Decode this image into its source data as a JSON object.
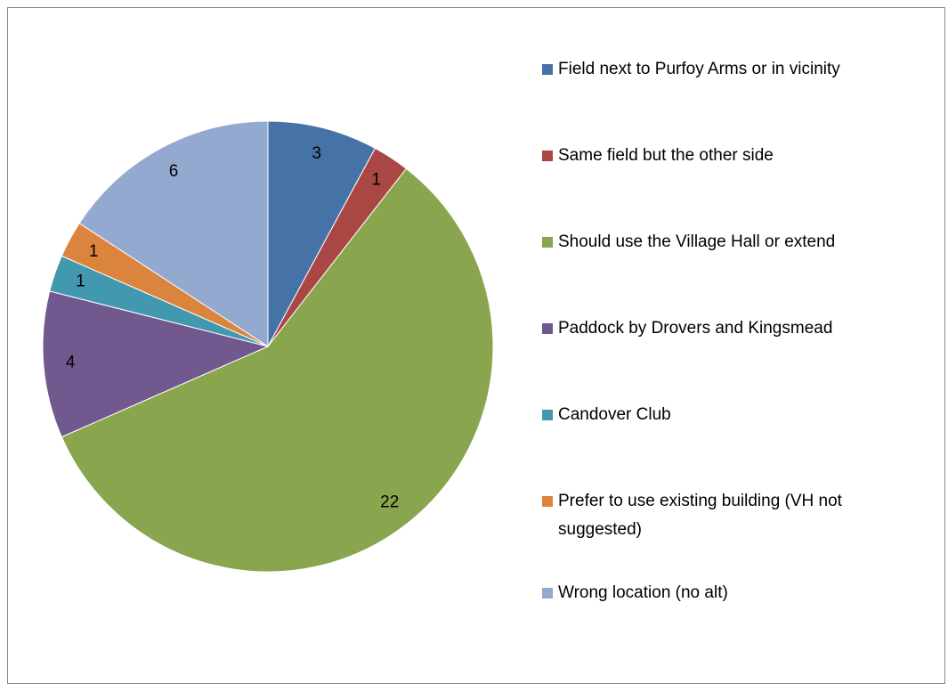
{
  "chart_data": {
    "type": "pie",
    "categories": [
      "Field next to Purfoy Arms or in vicinity",
      "Same field but the other side",
      "Should use the Village Hall or extend",
      "Paddock by Drovers and Kingsmead",
      "Candover Club",
      "Prefer to use existing building (VH not suggested)",
      "Wrong location (no alt)"
    ],
    "values": [
      3,
      1,
      22,
      4,
      1,
      1,
      6
    ],
    "colors": [
      "#4572a7",
      "#aa4643",
      "#89a54e",
      "#71588f",
      "#4198af",
      "#db843d",
      "#93a9cf"
    ],
    "legend": "right"
  }
}
